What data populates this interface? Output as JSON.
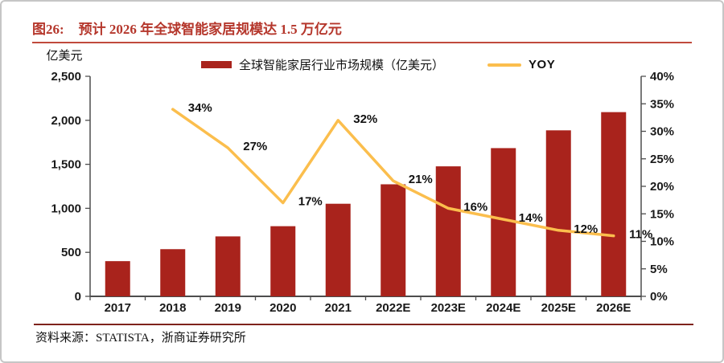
{
  "figure": {
    "number_label": "图26:",
    "title": "预计 2026 年全球智能家居规模达 1.5 万亿元",
    "source_note": "资料来源：STATISTA，浙商证券研究所"
  },
  "legend": [
    {
      "label": "全球智能家居行业市场规模（亿美元）",
      "swatch": "bar",
      "color": "#A9231C"
    },
    {
      "label": "YOY",
      "swatch": "line",
      "color": "#FBBE4D"
    }
  ],
  "colors": {
    "title_red": "#B5372C",
    "title_rule_red": "#C04A3C",
    "source_rule_red": "#7E231C",
    "bar_red": "#A9231C",
    "line_yellow": "#FBBE4D",
    "axis_grey": "#4D4D4D",
    "text_black": "#1A1A1A",
    "card_border": "#C6C6C6"
  },
  "chart_data": {
    "type": "bar",
    "title": "预计 2026 年全球智能家居规模达 1.5 万亿元",
    "categories": [
      "2017",
      "2018",
      "2019",
      "2020",
      "2021",
      "2022E",
      "2023E",
      "2024E",
      "2025E",
      "2026E"
    ],
    "series": [
      {
        "name": "全球智能家居行业市场规模（亿美元）",
        "type": "bar",
        "axis": "left",
        "color": "#A9231C",
        "values": [
          400,
          536,
          681,
          797,
          1052,
          1273,
          1477,
          1684,
          1886,
          2093
        ]
      },
      {
        "name": "YOY",
        "type": "line",
        "axis": "right",
        "color": "#FBBE4D",
        "values": [
          null,
          34,
          27,
          17,
          32,
          21,
          16,
          14,
          12,
          11
        ],
        "point_labels": [
          "",
          "34%",
          "27%",
          "17%",
          "32%",
          "21%",
          "16%",
          "14%",
          "12%",
          "11%"
        ]
      }
    ],
    "left_axis": {
      "title": "亿美元",
      "min": 0,
      "max": 2500,
      "step": 500,
      "tick_labels": [
        "0",
        "500",
        "1,000",
        "1,500",
        "2,000",
        "2,500"
      ]
    },
    "right_axis": {
      "title": "",
      "min": 0,
      "max": 40,
      "step": 5,
      "tick_labels": [
        "0%",
        "5%",
        "10%",
        "15%",
        "20%",
        "25%",
        "30%",
        "35%",
        "40%"
      ]
    },
    "grid": false,
    "legend_position": "top"
  }
}
